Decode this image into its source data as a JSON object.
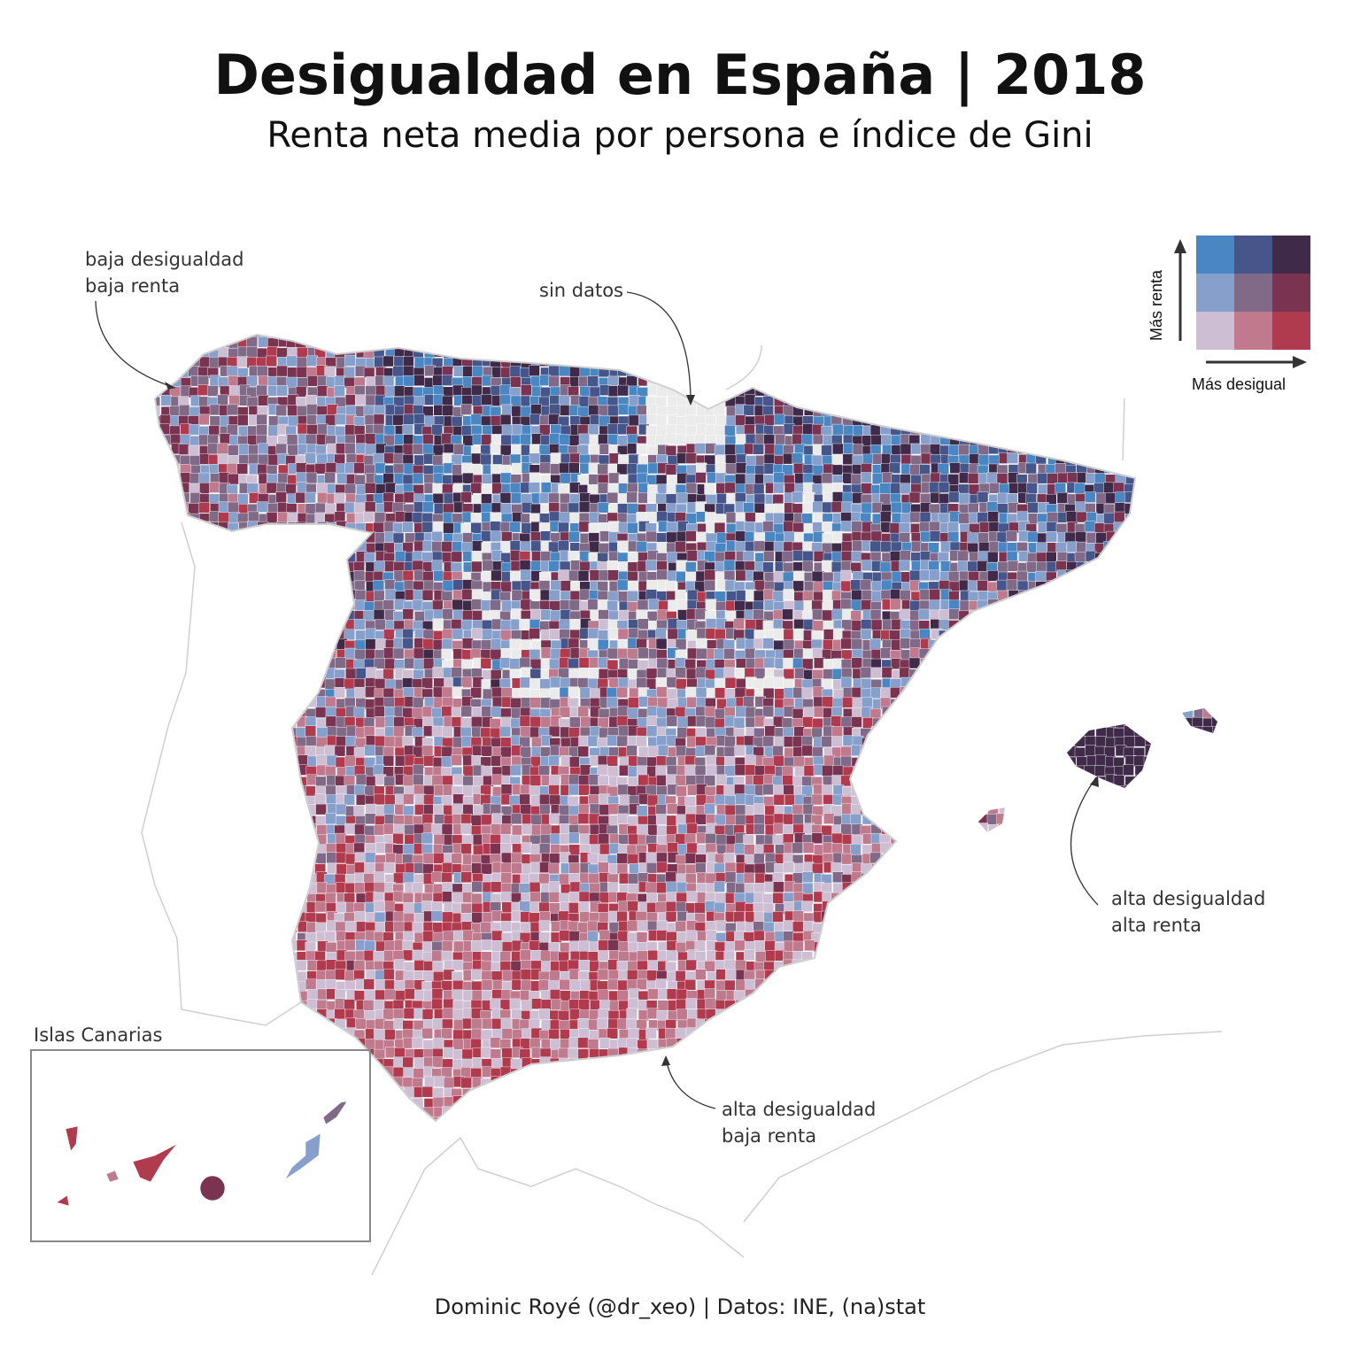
{
  "title": "Desigualdad en España | 2018",
  "subtitle": "Renta neta media por persona e índice de Gini",
  "annotations": {
    "nw": [
      "baja desigualdad",
      "baja renta"
    ],
    "nodata": "sin datos",
    "south": [
      "alta desigualdad",
      "baja renta"
    ],
    "east": [
      "alta desigualdad",
      "alta renta"
    ]
  },
  "inset_label": "Islas Canarias",
  "legend": {
    "y_label": "Más renta",
    "x_label": "Más desigual",
    "colors": [
      [
        "#4A86C2",
        "#47568A",
        "#3F2A4A"
      ],
      [
        "#869FCB",
        "#816A88",
        "#7A3350"
      ],
      [
        "#CDBED3",
        "#C07A8E",
        "#B03A4E"
      ]
    ],
    "no_data_color": "#EBEBEB"
  },
  "caption": "Dominic Royé (@dr_xeo) | Datos: INE, (na)stat"
}
